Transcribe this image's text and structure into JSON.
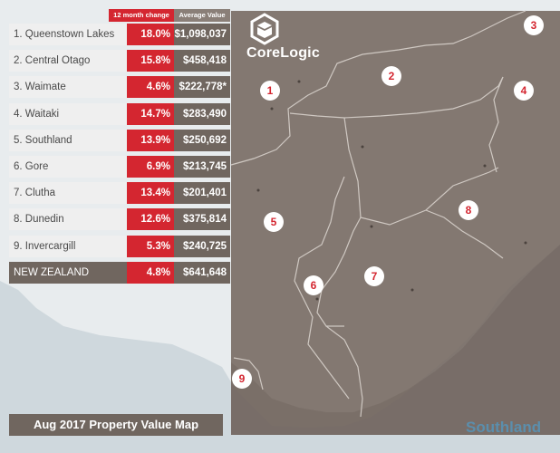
{
  "map": {
    "region_label": "Southland",
    "caption": "Aug 2017 Property Value Map",
    "brand": "CoreLogic",
    "colors": {
      "water": "#cfd8dd",
      "land": "#e8ecee",
      "overlay": "#7a6e66",
      "accent": "#d42630",
      "label": "#5b8eac"
    }
  },
  "table": {
    "headers": {
      "change": "12 month change",
      "average": "Average Value"
    },
    "rows": [
      {
        "name": "1. Queenstown Lakes",
        "change": "18.0%",
        "value": "$1,098,037"
      },
      {
        "name": "2. Central Otago",
        "change": "15.8%",
        "value": "$458,418"
      },
      {
        "name": "3. Waimate",
        "change": "4.6%",
        "value": "$222,778*"
      },
      {
        "name": "4. Waitaki",
        "change": "14.7%",
        "value": "$283,490"
      },
      {
        "name": "5. Southland",
        "change": "13.9%",
        "value": "$250,692"
      },
      {
        "name": "6. Gore",
        "change": "6.9%",
        "value": "$213,745"
      },
      {
        "name": "7. Clutha",
        "change": "13.4%",
        "value": "$201,401"
      },
      {
        "name": "8. Dunedin",
        "change": "12.6%",
        "value": "$375,814"
      },
      {
        "name": "9. Invercargill",
        "change": "5.3%",
        "value": "$240,725"
      },
      {
        "name": "NEW ZEALAND",
        "change": "4.8%",
        "value": "$641,648"
      }
    ]
  },
  "markers": [
    "1",
    "2",
    "3",
    "4",
    "5",
    "6",
    "7",
    "8",
    "9"
  ]
}
